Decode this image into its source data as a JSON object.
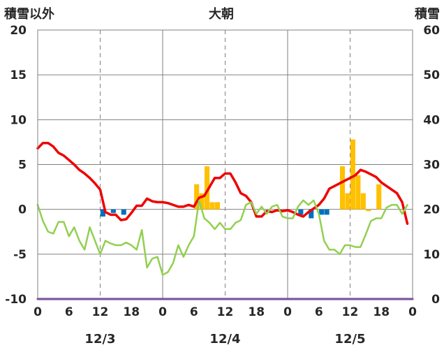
{
  "chart_data": {
    "type": "bar+line",
    "title": "大朝",
    "left_axis_label": "積雪以外",
    "right_axis_label": "積雪",
    "y_left": {
      "min": -10,
      "max": 20,
      "ticks": [
        20,
        15,
        10,
        5,
        0,
        -5,
        -10
      ]
    },
    "y_right": {
      "min": 0,
      "max": 60,
      "ticks": [
        60,
        50,
        40,
        30,
        20,
        10,
        0
      ]
    },
    "x_hour_labels": [
      "0",
      "6",
      "12",
      "18",
      "0",
      "6",
      "12",
      "18",
      "0",
      "6",
      "12",
      "18",
      "0"
    ],
    "x_hour_positions": [
      0,
      6,
      12,
      18,
      24,
      30,
      36,
      42,
      48,
      54,
      60,
      66,
      72
    ],
    "x_range": [
      0,
      72
    ],
    "date_labels": [
      {
        "text": "12/3",
        "x": 12
      },
      {
        "text": "12/4",
        "x": 36
      },
      {
        "text": "12/5",
        "x": 60
      }
    ],
    "grid": {
      "vertical_solid": [
        24,
        48
      ],
      "vertical_dashed": [
        12,
        36,
        60
      ],
      "horizontal_solid": [
        15,
        10,
        5,
        0,
        -5
      ]
    },
    "colors": {
      "red_line": "#ee0000",
      "green_line": "#92d050",
      "orange_bars": "#ffc000",
      "blue_bars": "#0070c0",
      "purple_line": "#7030a0",
      "grid": "#808080"
    },
    "series": [
      {
        "type": "line",
        "color": "#ee0000",
        "axis": "left",
        "x": [
          0,
          1,
          2,
          3,
          4,
          5,
          6,
          7,
          8,
          9,
          10,
          11,
          12,
          13,
          14,
          15,
          16,
          17,
          18,
          19,
          20,
          21,
          22,
          23,
          24,
          25,
          26,
          27,
          28,
          29,
          30,
          31,
          32,
          33,
          34,
          35,
          36,
          37,
          38,
          39,
          40,
          41,
          42,
          43,
          44,
          45,
          46,
          47,
          48,
          49,
          50,
          51,
          52,
          53,
          54,
          55,
          56,
          57,
          58,
          59,
          60,
          61,
          62,
          63,
          64,
          65,
          66,
          67,
          68,
          69,
          70,
          71
        ],
        "values": [
          6.8,
          7.4,
          7.4,
          7.0,
          6.3,
          6.0,
          5.5,
          5.0,
          4.4,
          4.0,
          3.5,
          2.9,
          2.2,
          -0.3,
          -0.6,
          -0.6,
          -1.2,
          -1.1,
          -0.4,
          0.4,
          0.4,
          1.2,
          0.9,
          0.8,
          0.8,
          0.7,
          0.5,
          0.3,
          0.3,
          0.5,
          0.3,
          1.3,
          1.5,
          2.5,
          3.5,
          3.5,
          4.0,
          4.0,
          3.0,
          1.8,
          1.5,
          0.8,
          -0.8,
          -0.8,
          -0.2,
          -0.3,
          -0.1,
          -0.2,
          -0.1,
          -0.3,
          -0.6,
          -0.8,
          -0.3,
          0.1,
          0.5,
          1.2,
          2.3,
          2.6,
          2.9,
          3.2,
          3.5,
          3.8,
          4.4,
          4.2,
          3.9,
          3.6,
          3.0,
          2.6,
          2.2,
          1.8,
          0.8,
          -1.6
        ]
      },
      {
        "type": "line",
        "color": "#92d050",
        "axis": "left",
        "x": [
          0,
          1,
          2,
          3,
          4,
          5,
          6,
          7,
          8,
          9,
          10,
          11,
          12,
          13,
          14,
          15,
          16,
          17,
          18,
          19,
          20,
          21,
          22,
          23,
          24,
          25,
          26,
          27,
          28,
          29,
          30,
          31,
          32,
          33,
          34,
          35,
          36,
          37,
          38,
          39,
          40,
          41,
          42,
          43,
          44,
          45,
          46,
          47,
          48,
          49,
          50,
          51,
          52,
          53,
          54,
          55,
          56,
          57,
          58,
          59,
          60,
          61,
          62,
          63,
          64,
          65,
          66,
          67,
          68,
          69,
          70,
          71
        ],
        "values": [
          0.5,
          -1.3,
          -2.5,
          -2.7,
          -1.4,
          -1.4,
          -3.0,
          -2.0,
          -3.5,
          -4.5,
          -2.0,
          -3.5,
          -5.0,
          -3.5,
          -3.8,
          -4.0,
          -4.0,
          -3.7,
          -4.0,
          -4.5,
          -2.3,
          -6.5,
          -5.5,
          -5.3,
          -7.3,
          -7.0,
          -6.0,
          -4.0,
          -5.3,
          -4.0,
          -3.0,
          1.0,
          -1.0,
          -1.5,
          -2.2,
          -1.5,
          -2.2,
          -2.2,
          -1.5,
          -1.2,
          0.5,
          0.8,
          -0.5,
          0.3,
          -0.5,
          0.3,
          0.5,
          -0.8,
          -1.0,
          -1.0,
          0.3,
          1.0,
          0.5,
          1.0,
          -0.5,
          -3.5,
          -4.5,
          -4.5,
          -5.0,
          -4.0,
          -4.0,
          -4.2,
          -4.2,
          -2.8,
          -1.3,
          -1.0,
          -1.0,
          0.2,
          0.5,
          0.5,
          -0.5,
          0.5
        ]
      },
      {
        "type": "bar",
        "color": "#ffc000",
        "axis": "left",
        "x": [
          31,
          32,
          33,
          34,
          35,
          59,
          60,
          61,
          62,
          63,
          64,
          66
        ],
        "values": [
          2.8,
          1.8,
          4.8,
          0.8,
          0.8,
          4.8,
          1.8,
          7.8,
          3.8,
          1.8,
          -0.2,
          2.8
        ]
      },
      {
        "type": "bar",
        "color": "#0070c0",
        "axis": "left",
        "x": [
          13,
          15,
          17,
          51,
          53,
          55,
          56
        ],
        "values": [
          -0.8,
          -0.4,
          -0.6,
          -0.6,
          -1.0,
          -0.6,
          -0.6
        ]
      },
      {
        "type": "line",
        "color": "#7030a0",
        "axis": "right",
        "x": [
          0,
          72
        ],
        "values": [
          0,
          0
        ]
      }
    ]
  }
}
